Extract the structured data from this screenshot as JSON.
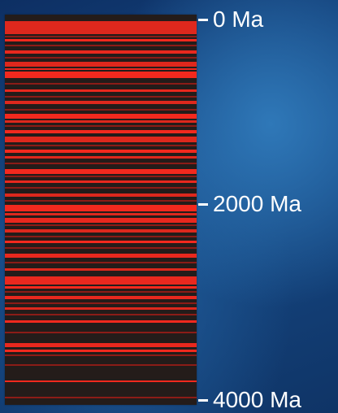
{
  "timeline": {
    "unit": "Ma",
    "range_ma": [
      0,
      4000
    ],
    "ticks": [
      {
        "value": 0,
        "label": "0 Ma"
      },
      {
        "value": 2000,
        "label": "2000 Ma"
      },
      {
        "value": 4000,
        "label": "4000 Ma"
      }
    ],
    "colors": {
      "band_red": "#ff2a1f",
      "band_dim": "#b81d17",
      "background_dark": "#241c1a",
      "label": "#ffffff"
    }
  }
}
